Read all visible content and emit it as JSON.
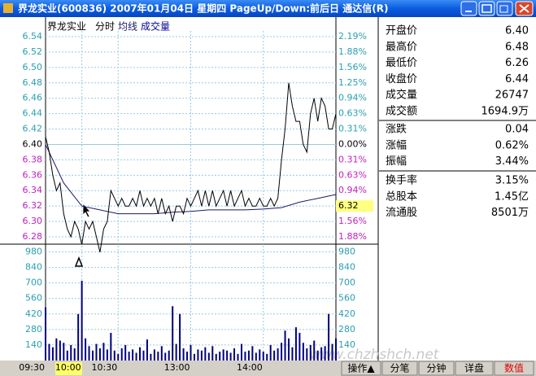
{
  "window": {
    "title": "界龙实业(600836) 2007年01月04日 星期四 PageUp/Down:前后日 通达信(R)"
  },
  "chart": {
    "legend": {
      "name": "界龙实业",
      "items": [
        "分时",
        "均线",
        "成交量"
      ]
    },
    "price_axis": {
      "ylim": [
        6.2705,
        6.5474
      ],
      "ticks": [
        {
          "value": 6.54,
          "label": "6.54"
        },
        {
          "value": 6.52,
          "label": "6.52"
        },
        {
          "value": 6.5,
          "label": "6.50"
        },
        {
          "value": 6.48,
          "label": "6.48"
        },
        {
          "value": 6.46,
          "label": "6.46"
        },
        {
          "value": 6.44,
          "label": "6.44"
        },
        {
          "value": 6.42,
          "label": "6.42"
        },
        {
          "value": 6.4,
          "label": "6.40"
        },
        {
          "value": 6.38,
          "label": "6.38"
        },
        {
          "value": 6.36,
          "label": "6.36"
        },
        {
          "value": 6.34,
          "label": "6.34"
        },
        {
          "value": 6.32,
          "label": "6.32"
        },
        {
          "value": 6.3,
          "label": "6.30"
        },
        {
          "value": 6.28,
          "label": "6.28"
        }
      ]
    },
    "pct_labels": [
      {
        "value": 2.19,
        "label": "2.19%"
      },
      {
        "value": 1.88,
        "label": "1.88%"
      },
      {
        "value": 1.56,
        "label": "1.56%"
      },
      {
        "value": 1.25,
        "label": "1.25%"
      },
      {
        "value": 0.94,
        "label": "0.94%"
      },
      {
        "value": 0.63,
        "label": "0.63%"
      },
      {
        "value": 0.31,
        "label": "0.31%"
      },
      {
        "value": 0,
        "label": "0.00%"
      },
      {
        "value": -0.31,
        "label": "0.31%"
      },
      {
        "value": -0.63,
        "label": "0.63%"
      },
      {
        "value": -0.94,
        "label": "0.94%"
      },
      {
        "value": -1.25,
        "label": "1.25%"
      },
      {
        "value": -1.56,
        "label": "1.56%"
      },
      {
        "value": -1.88,
        "label": "1.88%"
      }
    ],
    "up_color": "#2a9fb0",
    "down_color": "#c020c0",
    "flat_color": "#000000",
    "price_series": {
      "color": "#000000",
      "values": [
        6.41,
        6.39,
        6.36,
        6.34,
        6.35,
        6.31,
        6.29,
        6.28,
        6.3,
        6.29,
        6.27,
        6.3,
        6.29,
        6.3,
        6.28,
        6.26,
        6.29,
        6.3,
        6.34,
        6.33,
        6.32,
        6.33,
        6.32,
        6.32,
        6.33,
        6.32,
        6.34,
        6.32,
        6.33,
        6.32,
        6.33,
        6.31,
        6.33,
        6.31,
        6.32,
        6.3,
        6.32,
        6.32,
        6.31,
        6.33,
        6.32,
        6.33,
        6.34,
        6.32,
        6.34,
        6.32,
        6.34,
        6.32,
        6.33,
        6.34,
        6.32,
        6.34,
        6.32,
        6.33,
        6.34,
        6.32,
        6.33,
        6.32,
        6.32,
        6.33,
        6.32,
        6.32,
        6.33,
        6.32,
        6.33,
        6.38,
        6.42,
        6.48,
        6.45,
        6.43,
        6.43,
        6.4,
        6.39,
        6.44,
        6.46,
        6.43,
        6.46,
        6.45,
        6.42,
        6.42,
        6.44
      ]
    },
    "avg_series": {
      "color": "#1a1a6e",
      "values": [
        6.4,
        6.35,
        6.32,
        6.315,
        6.31,
        6.31,
        6.31,
        6.312,
        6.313,
        6.315,
        6.315,
        6.315,
        6.316,
        6.318,
        6.325,
        6.33,
        6.335
      ]
    },
    "cursor_price": {
      "value": 6.32,
      "label": "6.32"
    },
    "volume_axis": {
      "ylim": [
        0,
        1050
      ],
      "ticks": [
        980,
        840,
        700,
        560,
        420,
        280,
        140
      ]
    },
    "volume": {
      "color": "#000080",
      "values": [
        480,
        150,
        120,
        200,
        180,
        160,
        90,
        140,
        110,
        420,
        720,
        200,
        130,
        90,
        150,
        110,
        160,
        100,
        250,
        90,
        60,
        110,
        140,
        80,
        100,
        70,
        120,
        90,
        190,
        60,
        100,
        80,
        130,
        70,
        90,
        490,
        150,
        420,
        110,
        80,
        140,
        60,
        100,
        90,
        120,
        70,
        130,
        60,
        80,
        100,
        90,
        70,
        110,
        60,
        150,
        80,
        90,
        130,
        70,
        100,
        80,
        60,
        140,
        90,
        110,
        160,
        270,
        200,
        120,
        300,
        250,
        160,
        110,
        140,
        180,
        90,
        120,
        130,
        420,
        150,
        200
      ]
    },
    "time_ticks": [
      "09:30",
      "10:00",
      "10:30",
      "13:00",
      "14:00"
    ]
  },
  "info": {
    "groups": [
      [
        {
          "label": "开盘价",
          "value": "6.40"
        },
        {
          "label": "最高价",
          "value": "6.48"
        },
        {
          "label": "最低价",
          "value": "6.26"
        },
        {
          "label": "收盘价",
          "value": "6.44"
        },
        {
          "label": "成交量",
          "value": "26747"
        },
        {
          "label": "成交额",
          "value": "1694.9万"
        }
      ],
      [
        {
          "label": "涨跌",
          "value": "0.04"
        },
        {
          "label": "涨幅",
          "value": "0.62%"
        },
        {
          "label": "振幅",
          "value": "3.44%"
        }
      ],
      [
        {
          "label": "换手率",
          "value": "3.15%"
        },
        {
          "label": "总股本",
          "value": "1.45亿"
        },
        {
          "label": "流通股",
          "value": "8501万"
        }
      ]
    ]
  },
  "tabs": [
    "操作▲",
    "分笔",
    "分钟",
    "详盘",
    "数值"
  ],
  "watermark": "www.chzhshch.net"
}
